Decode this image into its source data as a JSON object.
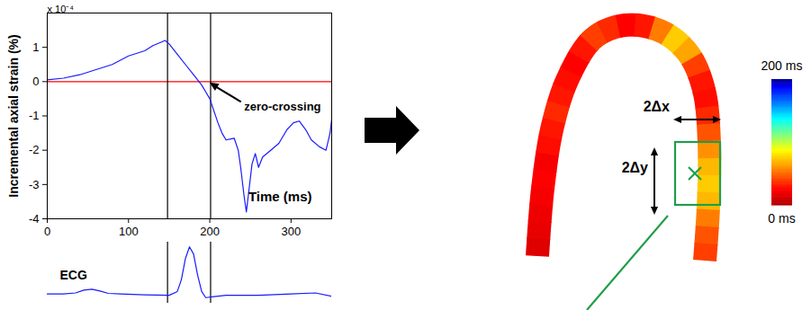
{
  "chart_data": [
    {
      "type": "line",
      "ylabel": "Incremental axial strain (%)",
      "xlabel": "Time (ms)",
      "y_multiplier": "x 10⁻⁴",
      "x": [
        0,
        20,
        40,
        60,
        80,
        100,
        120,
        130,
        140,
        145,
        150,
        160,
        170,
        180,
        190,
        195,
        200,
        210,
        215,
        220,
        230,
        235,
        238,
        242,
        245,
        248,
        252,
        256,
        260,
        265,
        275,
        285,
        295,
        303,
        310,
        318,
        325,
        335,
        343,
        348,
        350
      ],
      "values": [
        0.05,
        0.1,
        0.2,
        0.35,
        0.5,
        0.75,
        0.9,
        1.05,
        1.15,
        1.2,
        1.1,
        0.8,
        0.5,
        0.2,
        -0.1,
        -0.3,
        -0.5,
        -1.2,
        -1.5,
        -1.7,
        -1.65,
        -2.0,
        -2.5,
        -3.3,
        -3.8,
        -3.2,
        -2.4,
        -2.1,
        -2.5,
        -2.2,
        -2.0,
        -1.8,
        -1.4,
        -1.2,
        -1.15,
        -1.4,
        -1.7,
        -1.9,
        -2.0,
        -1.5,
        -1.1
      ],
      "color": "#1a1aff",
      "xlim": [
        0,
        350
      ],
      "ylim": [
        -4,
        2
      ],
      "xticks": [
        0,
        100,
        200,
        300
      ],
      "yticks": [
        -4,
        -3,
        -2,
        -1,
        0,
        1
      ],
      "hlines": [
        0
      ],
      "vlines": [
        148,
        201
      ],
      "annotations": [
        {
          "text": "zero-crossing",
          "x": 198,
          "y": 0
        }
      ]
    },
    {
      "type": "line",
      "label": "ECG",
      "x": [
        0,
        20,
        35,
        45,
        55,
        65,
        75,
        90,
        120,
        150,
        160,
        165,
        170,
        175,
        180,
        185,
        190,
        195,
        205,
        220,
        260,
        300,
        330,
        350
      ],
      "values": [
        0,
        0,
        0.02,
        0.08,
        0.1,
        0.06,
        0.01,
        0,
        -0.02,
        -0.03,
        0.05,
        0.3,
        0.75,
        1,
        0.85,
        0.4,
        0.05,
        -0.08,
        -0.06,
        -0.03,
        -0.03,
        0,
        0.02,
        -0.05
      ],
      "color": "#1a1aff",
      "xlim": [
        0,
        350
      ],
      "ylim": [
        -0.2,
        1.1
      ],
      "tick_labels": false
    },
    {
      "type": "heatmap",
      "values": [
        15,
        18,
        20,
        22,
        25,
        22,
        28,
        30,
        35,
        30,
        28,
        25,
        30,
        40,
        35,
        25,
        30,
        55,
        75,
        65,
        40,
        30,
        28,
        35,
        45,
        60,
        70,
        75,
        70,
        55,
        45,
        40
      ],
      "colorbar": {
        "range": [
          0,
          200
        ],
        "ticks": [
          {
            "value": 0,
            "label": "0 ms"
          },
          {
            "value": 200,
            "label": "200 ms"
          }
        ]
      },
      "annotations": [
        "2Δx",
        "2Δy"
      ]
    }
  ]
}
